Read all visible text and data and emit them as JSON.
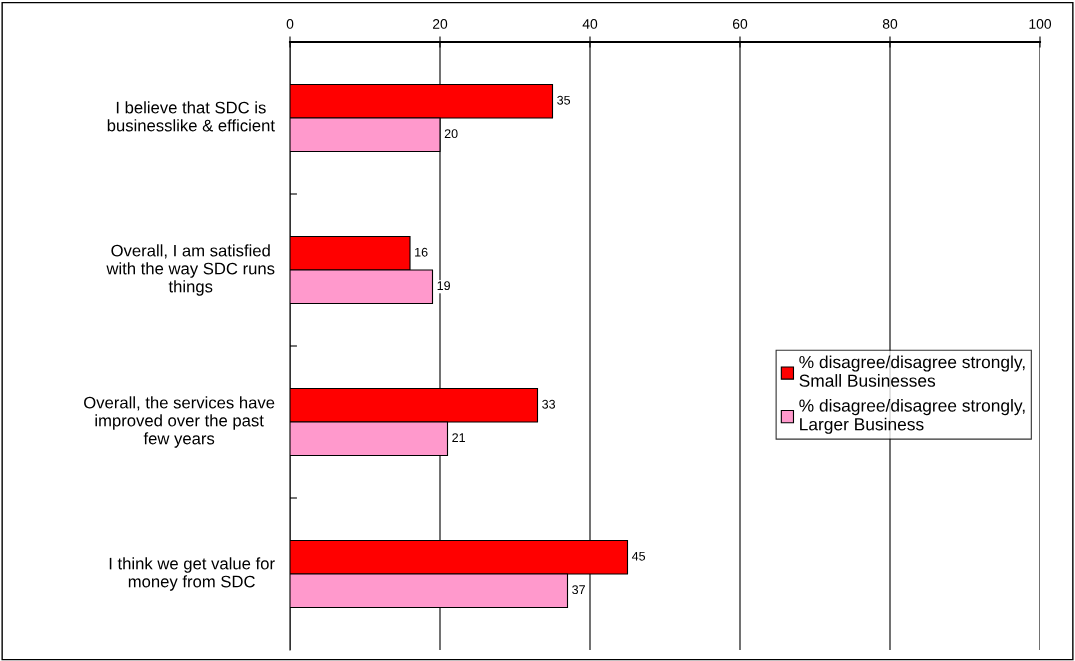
{
  "chart_data": {
    "type": "bar",
    "orientation": "horizontal",
    "categories": [
      "I believe that SDC is\nbusinesslike & efficient",
      "Overall, I am satisfied\nwith the way SDC runs\nthings",
      "Overall, the services have\nimproved over the past\nfew years",
      "I think we get value for\nmoney from SDC"
    ],
    "series": [
      {
        "name": "% disagree/disagree strongly,\nSmall Businesses",
        "color": "#ff0000",
        "values": [
          35,
          16,
          33,
          45
        ]
      },
      {
        "name": "% disagree/disagree strongly,\nLarger Business",
        "color": "#ff99cc",
        "values": [
          20,
          19,
          21,
          37
        ]
      }
    ],
    "xlim": [
      0,
      100
    ],
    "xticks": [
      0,
      20,
      40,
      60,
      80,
      100
    ],
    "grid": "x",
    "legend": "right",
    "data_labels": true
  }
}
